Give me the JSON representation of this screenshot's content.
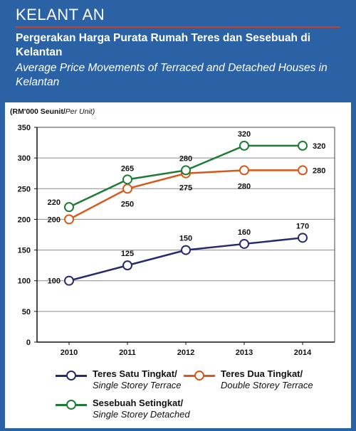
{
  "header": {
    "region": "KELANT AN",
    "title_ms": "Pergerakan Harga Purata Rumah Teres dan Sesebuah di Kelantan",
    "title_en": "Average Price Movements of Terraced and Detached Houses in Kelantan"
  },
  "colors": {
    "background": "#2b62a6",
    "accent_rule": "#c9402a"
  },
  "chart_data": {
    "type": "line",
    "ylabel_ms": "(RM'000 Seunit/",
    "ylabel_en": "Per Unit)",
    "x": [
      "2010",
      "2011",
      "2012",
      "2013",
      "2014"
    ],
    "ylim": [
      0,
      350
    ],
    "yticks": [
      0,
      50,
      100,
      150,
      200,
      250,
      300,
      350
    ],
    "grid": true,
    "series": [
      {
        "key": "single_terrace",
        "name_ms": "Teres Satu Tingkat/",
        "name_en": "Single Storey Terrace",
        "color": "#282a6e",
        "values": [
          100,
          125,
          150,
          160,
          170
        ],
        "labels": [
          "100",
          "125",
          "150",
          "160",
          "170"
        ]
      },
      {
        "key": "double_terrace",
        "name_ms": "Teres Dua Tingkat/",
        "name_en": "Double Storey Terrace",
        "color": "#d8581a",
        "values": [
          200,
          250,
          275,
          280,
          280
        ],
        "labels": [
          "200",
          "250",
          "275",
          "280",
          "280"
        ]
      },
      {
        "key": "single_detached",
        "name_ms": "Sesebuah Setingkat/",
        "name_en": "Single Storey Detached",
        "color": "#1f7a36",
        "values": [
          220,
          265,
          280,
          320,
          320
        ],
        "labels": [
          "220",
          "265",
          "280",
          "320",
          "320"
        ]
      }
    ]
  }
}
